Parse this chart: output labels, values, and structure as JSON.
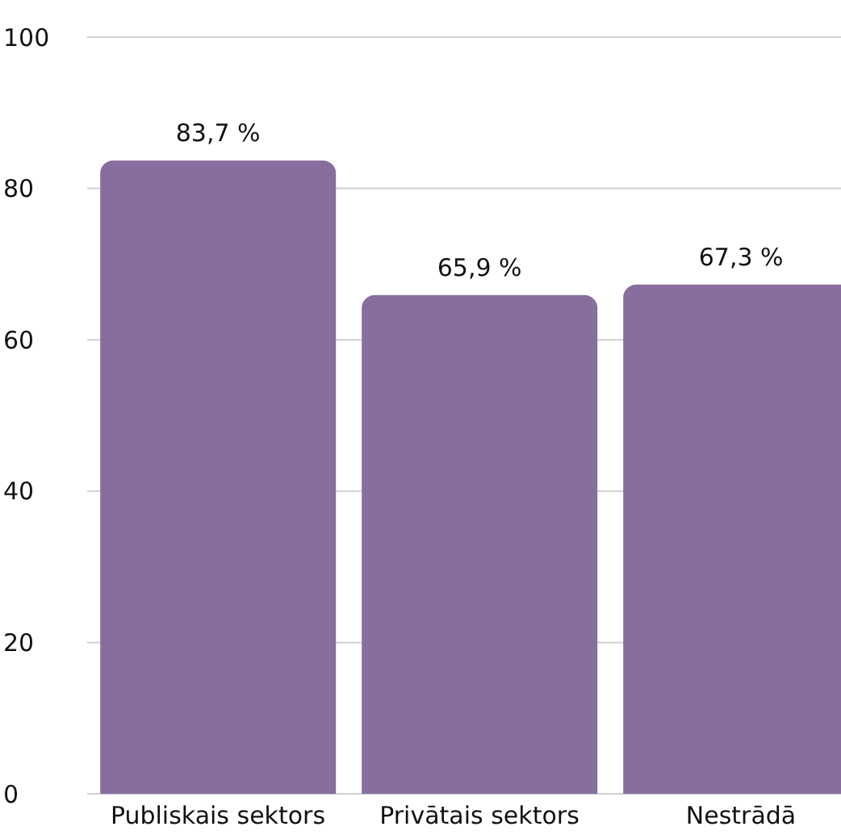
{
  "chart_data": {
    "type": "bar",
    "categories": [
      "Publiskais sektors",
      "Privātais sektors",
      "Nestrādā"
    ],
    "values": [
      83.7,
      65.9,
      67.3
    ],
    "color": "#866e9e",
    "value_labels": [
      "83,7 %",
      "65,9 %",
      "67,3 %"
    ],
    "ylim": [
      0,
      100
    ],
    "yticks": [
      0,
      20,
      40,
      60,
      80,
      100
    ],
    "grid": "y"
  }
}
